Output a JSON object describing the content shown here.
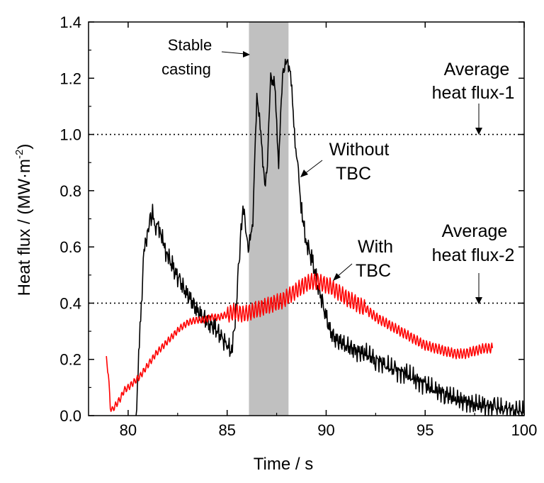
{
  "chart_data": {
    "type": "line",
    "xlabel": "Time / s",
    "ylabel_main": "Heat flux / (MW·m",
    "ylabel_exp": "-2",
    "ylabel_close": ")",
    "xlim": [
      78,
      100
    ],
    "ylim": [
      0,
      1.4
    ],
    "xticks": [
      "80",
      "85",
      "90",
      "95",
      "100"
    ],
    "yticks": [
      "0.0",
      "0.2",
      "0.4",
      "0.6",
      "0.8",
      "1.0",
      "1.2",
      "1.4"
    ],
    "grid": false,
    "shaded_region": {
      "x": [
        86.1,
        88.1
      ],
      "color": "#c0c0c0"
    },
    "reference_lines": [
      {
        "y": 1.0,
        "style": "dotted"
      },
      {
        "y": 0.4,
        "style": "dotted"
      }
    ],
    "annotations": {
      "stable_casting": [
        "Stable",
        "casting"
      ],
      "avg1": [
        "Average",
        "heat flux-1"
      ],
      "avg2": [
        "Average",
        "heat flux-2"
      ],
      "without_tbc": [
        "Without",
        "TBC"
      ],
      "with_tbc": [
        "With",
        "TBC"
      ]
    },
    "series": [
      {
        "color": "#000000",
        "x": [
          80.4,
          80.6,
          80.8,
          81.0,
          81.1,
          81.2,
          81.4,
          81.6,
          81.8,
          82.0,
          82.3,
          82.6,
          82.9,
          83.2,
          83.5,
          83.8,
          84.1,
          84.4,
          84.7,
          85.0,
          85.2,
          85.4,
          85.5,
          85.6,
          85.7,
          85.8,
          85.9,
          86.0,
          86.1,
          86.3,
          86.5,
          86.7,
          86.9,
          87.0,
          87.2,
          87.4,
          87.6,
          87.8,
          88.0,
          88.2,
          88.4,
          88.6,
          88.8,
          89.0,
          89.3,
          89.6,
          89.9,
          90.2,
          90.5,
          91.0,
          91.5,
          92.0,
          92.5,
          93.0,
          93.5,
          94.0,
          94.5,
          95.0,
          95.5,
          96.0,
          96.5,
          97.0,
          97.5,
          98.0,
          98.5,
          99.0,
          99.5,
          100.0
        ],
        "y": [
          0.0,
          0.3,
          0.58,
          0.66,
          0.7,
          0.72,
          0.68,
          0.67,
          0.6,
          0.57,
          0.52,
          0.48,
          0.44,
          0.41,
          0.37,
          0.35,
          0.33,
          0.31,
          0.28,
          0.25,
          0.23,
          0.32,
          0.45,
          0.55,
          0.65,
          0.73,
          0.7,
          0.62,
          0.6,
          0.7,
          1.15,
          1.0,
          0.82,
          0.85,
          1.2,
          1.18,
          0.9,
          1.22,
          1.26,
          1.23,
          1.0,
          0.85,
          0.7,
          0.62,
          0.55,
          0.46,
          0.38,
          0.3,
          0.27,
          0.25,
          0.23,
          0.22,
          0.2,
          0.18,
          0.16,
          0.15,
          0.13,
          0.11,
          0.09,
          0.08,
          0.06,
          0.05,
          0.04,
          0.035,
          0.03,
          0.025,
          0.02,
          0.015
        ]
      },
      {
        "color": "#ff0000",
        "x": [
          78.9,
          79.0,
          79.1,
          79.2,
          79.4,
          79.6,
          79.8,
          80.0,
          80.3,
          80.6,
          81.0,
          81.4,
          81.8,
          82.2,
          82.6,
          83.0,
          83.4,
          83.8,
          84.2,
          84.6,
          85.0,
          85.4,
          85.8,
          86.2,
          86.6,
          87.0,
          87.4,
          87.8,
          88.2,
          88.6,
          89.0,
          89.4,
          89.8,
          90.2,
          90.6,
          91.0,
          91.5,
          92.0,
          92.5,
          93.0,
          93.5,
          94.0,
          94.5,
          95.0,
          95.5,
          96.0,
          96.5,
          97.0,
          97.5,
          98.0,
          98.4
        ],
        "y": [
          0.2,
          0.15,
          0.03,
          0.02,
          0.04,
          0.06,
          0.09,
          0.1,
          0.12,
          0.14,
          0.18,
          0.22,
          0.25,
          0.28,
          0.31,
          0.33,
          0.34,
          0.34,
          0.35,
          0.35,
          0.36,
          0.37,
          0.36,
          0.37,
          0.38,
          0.39,
          0.4,
          0.41,
          0.43,
          0.45,
          0.47,
          0.48,
          0.47,
          0.46,
          0.44,
          0.42,
          0.4,
          0.38,
          0.35,
          0.33,
          0.31,
          0.29,
          0.27,
          0.25,
          0.24,
          0.23,
          0.22,
          0.22,
          0.23,
          0.24,
          0.24
        ]
      }
    ]
  }
}
